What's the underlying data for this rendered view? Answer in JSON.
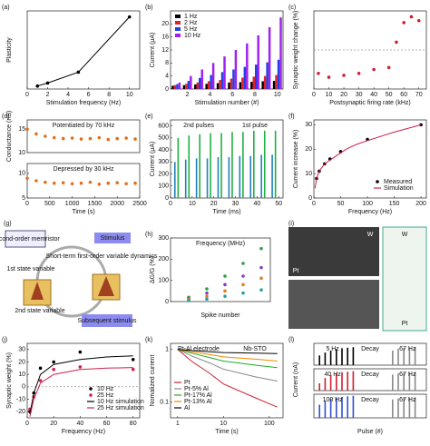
{
  "chart_data": [
    {
      "type": "line",
      "label": "(a)",
      "xlabel": "Stimulation frequency (Hz)",
      "ylabel": "Plasticity",
      "xlim": [
        0,
        11
      ],
      "xticks": [
        0,
        2,
        4,
        6,
        8,
        10
      ],
      "ylim": [
        0,
        1.3
      ],
      "series": [
        {
          "color": "#000000",
          "style": "both",
          "x": [
            1,
            2,
            5,
            10
          ],
          "values": [
            0.05,
            0.1,
            0.28,
            1.2
          ]
        }
      ]
    },
    {
      "type": "bar",
      "label": "(b)",
      "xlabel": "Stimulation number (#)",
      "ylabel": "Current (μA)",
      "categories": [
        null,
        "2",
        null,
        "4",
        null,
        "6",
        null,
        "8",
        null,
        "10"
      ],
      "ylim": [
        0,
        24
      ],
      "yticks": [
        0,
        4,
        8,
        12,
        16,
        20
      ],
      "legend": "upper left",
      "series": [
        {
          "name": "1 Hz",
          "color": "#000000",
          "values": [
            1,
            1.2,
            1.4,
            1.6,
            1.8,
            2,
            2.1,
            2.2,
            2.4,
            2.5
          ]
        },
        {
          "name": "2 Hz",
          "color": "#e0202a",
          "values": [
            1.2,
            1.6,
            2,
            2.4,
            2.8,
            3.2,
            3.5,
            3.8,
            4,
            4.3
          ]
        },
        {
          "name": "5 Hz",
          "color": "#2040e0",
          "values": [
            1.5,
            2.5,
            3.4,
            4.3,
            5.2,
            6,
            6.8,
            7.5,
            8.2,
            9
          ]
        },
        {
          "name": "10 Hz",
          "color": "#a020f0",
          "values": [
            2,
            4,
            6,
            8,
            10,
            12,
            14,
            16.5,
            19,
            22
          ]
        }
      ]
    },
    {
      "type": "scatter",
      "label": "(c)",
      "xlabel": "Postsynaptic firing rate (kHz)",
      "ylabel": "Synaptic weight change (%)",
      "xlim": [
        0,
        75
      ],
      "xticks": [
        0,
        10,
        20,
        30,
        40,
        50,
        60,
        70
      ],
      "ylim": [
        -1,
        1
      ],
      "zeroline": true,
      "series": [
        {
          "color": "#d02030",
          "x": [
            3,
            10,
            20,
            30,
            40,
            50,
            55,
            60,
            65,
            70
          ],
          "values": [
            -0.6,
            -0.7,
            -0.65,
            -0.6,
            -0.5,
            -0.45,
            0.2,
            0.7,
            0.85,
            0.75
          ]
        }
      ]
    },
    {
      "type": "scatter",
      "label": "(d)",
      "ylabel": "Conductance (nS)",
      "xlim": [
        0,
        2500
      ],
      "ylim": [
        10,
        17
      ],
      "yticks": [
        10,
        15
      ],
      "annotations": [
        "Potentiated by 70 kHz"
      ],
      "series": [
        {
          "color": "#e07020",
          "x": [
            0,
            200,
            400,
            600,
            800,
            1000,
            1200,
            1400,
            1600,
            1800,
            2000,
            2200,
            2400
          ],
          "values": [
            15,
            14,
            13.5,
            13.2,
            13,
            13.1,
            12.9,
            13,
            13.2,
            12.8,
            13,
            13.1,
            12.9
          ]
        }
      ]
    },
    {
      "type": "scatter",
      "xlabel": "Time (s)",
      "xlim": [
        0,
        2500
      ],
      "xticks": [
        0,
        500,
        1000,
        1500,
        2000,
        2500
      ],
      "ylim": [
        5,
        12
      ],
      "yticks": [
        5,
        10
      ],
      "annotations": [
        "Depressed by 30 kHz"
      ],
      "series": [
        {
          "color": "#e07020",
          "x": [
            0,
            200,
            400,
            600,
            800,
            1000,
            1200,
            1400,
            1600,
            1800,
            2000,
            2200,
            2400
          ],
          "values": [
            9,
            8.5,
            8.2,
            8,
            8.1,
            7.9,
            8,
            8.2,
            7.8,
            8,
            8.1,
            7.9,
            8
          ]
        }
      ]
    },
    {
      "type": "bar",
      "label": "(e)",
      "xlabel": "Time (ms)",
      "ylabel": "Current (μA)",
      "xlim": [
        0,
        52
      ],
      "xticks": [
        0,
        10,
        20,
        30,
        40,
        50
      ],
      "ylim": [
        0,
        650
      ],
      "yticks": [
        0,
        100,
        200,
        300,
        400,
        500,
        600
      ],
      "annotations": [
        "2nd pulses",
        "1st pulse"
      ],
      "series": [
        {
          "color": "#2080c0",
          "x": [
            2,
            7,
            12,
            17,
            22,
            27,
            32,
            37,
            42,
            47
          ],
          "values": [
            300,
            320,
            330,
            330,
            340,
            340,
            350,
            350,
            360,
            360
          ]
        },
        {
          "color": "#20b040",
          "x": [
            3.5,
            8.5,
            13.5,
            18.5,
            23.5,
            28.5,
            33.5,
            38.5,
            43.5,
            48.5
          ],
          "values": [
            500,
            520,
            530,
            540,
            540,
            550,
            550,
            560,
            560,
            560
          ]
        }
      ]
    },
    {
      "type": "line",
      "label": "(f)",
      "xlabel": "Frequency (Hz)",
      "ylabel": "Current increase (%)",
      "xlim": [
        0,
        210
      ],
      "xticks": [
        0,
        50,
        100,
        150,
        200
      ],
      "ylim": [
        0,
        32
      ],
      "yticks": [
        0,
        10,
        20,
        30
      ],
      "legend": "lower right",
      "series": [
        {
          "name": "Measured",
          "color": "#000000",
          "style": "marker",
          "x": [
            5,
            10,
            20,
            30,
            50,
            100,
            200
          ],
          "values": [
            8,
            11,
            14,
            16,
            19,
            24,
            30
          ]
        },
        {
          "name": "Simulation",
          "color": "#d0204a",
          "style": "line",
          "x": [
            2,
            5,
            10,
            20,
            40,
            60,
            80,
            100,
            150,
            200
          ],
          "values": [
            4,
            8,
            11,
            14,
            17,
            20,
            22,
            23.5,
            27,
            30
          ]
        }
      ]
    },
    {
      "type": "diagram",
      "label": "(g)",
      "texts": [
        "Second-order memristor",
        "Stimulus",
        "Short-term first-order variable dynamics",
        "1st state variable",
        "2nd state variable",
        "Subsequent stimulus"
      ]
    },
    {
      "type": "scatter",
      "label": "(h)",
      "xlabel": "Spike number",
      "ylabel": "ΔG/G (%)",
      "xlim": [
        0,
        11
      ],
      "ylim": [
        0,
        300
      ],
      "yticks": [
        0,
        100,
        200,
        300
      ],
      "annotations": [
        "Frequency (MHz)"
      ],
      "series": [
        {
          "color": "#30a040",
          "x": [
            2,
            4,
            6,
            8,
            10
          ],
          "values": [
            20,
            60,
            120,
            180,
            250
          ]
        },
        {
          "color": "#8040c0",
          "x": [
            2,
            4,
            6,
            8,
            10
          ],
          "values": [
            15,
            40,
            80,
            120,
            160
          ]
        },
        {
          "color": "#e08020",
          "x": [
            2,
            4,
            6,
            8,
            10
          ],
          "values": [
            10,
            25,
            50,
            80,
            110
          ]
        },
        {
          "color": "#20a0a0",
          "x": [
            2,
            4,
            6,
            8,
            10
          ],
          "values": [
            5,
            12,
            25,
            40,
            55
          ]
        }
      ]
    },
    {
      "type": "image",
      "label": "(i)",
      "texts": [
        "W",
        "Pt",
        "W",
        "Pt"
      ]
    },
    {
      "type": "line",
      "label": "(j)",
      "xlabel": "Frequency (Hz)",
      "ylabel": "Synaptic weight (%)",
      "xlim": [
        0,
        85
      ],
      "xticks": [
        0,
        20,
        40,
        60,
        80
      ],
      "ylim": [
        -25,
        35
      ],
      "yticks": [
        -20,
        -10,
        0,
        10,
        20,
        30
      ],
      "zeroline": true,
      "legend": "lower right",
      "series": [
        {
          "name": "10 Hz",
          "color": "#000000",
          "style": "marker",
          "x": [
            2,
            5,
            10,
            20,
            40,
            80
          ],
          "values": [
            -20,
            -5,
            15,
            20,
            28,
            22
          ]
        },
        {
          "name": "25 Hz",
          "color": "#d0204a",
          "style": "marker",
          "x": [
            2,
            5,
            10,
            20,
            40,
            80
          ],
          "values": [
            -18,
            -8,
            5,
            14,
            16,
            14
          ]
        },
        {
          "name": "10 Hz simulation",
          "color": "#000000",
          "style": "line",
          "x": [
            2,
            5,
            10,
            20,
            40,
            60,
            80
          ],
          "values": [
            -22,
            -5,
            10,
            18,
            22,
            24,
            25
          ]
        },
        {
          "name": "25 Hz simulation",
          "color": "#d0204a",
          "style": "line",
          "x": [
            2,
            5,
            10,
            20,
            40,
            60,
            80
          ],
          "values": [
            -24,
            -10,
            3,
            10,
            14,
            15,
            15.5
          ]
        }
      ]
    },
    {
      "type": "line",
      "label": "(k)",
      "xlabel": "Time (s)",
      "ylabel": "Nomalized current",
      "xlog": true,
      "ylog": true,
      "xlim": [
        0.7,
        200
      ],
      "xticks": [
        1,
        10,
        100
      ],
      "ylim": [
        0.05,
        1.3
      ],
      "yticks": [
        0.1,
        1
      ],
      "legend": "lower left",
      "annotations": [
        "Pt-Al electrode",
        "Nb-STO"
      ],
      "series": [
        {
          "name": "Pt",
          "color": "#d02030",
          "x": [
            1,
            2,
            5,
            10,
            50,
            150
          ],
          "values": [
            1,
            0.6,
            0.35,
            0.22,
            0.12,
            0.08
          ]
        },
        {
          "name": "Pt-5% Al",
          "color": "#888888",
          "x": [
            1,
            2,
            5,
            10,
            50,
            150
          ],
          "values": [
            1,
            0.75,
            0.55,
            0.42,
            0.3,
            0.25
          ]
        },
        {
          "name": "Pt-17% Al",
          "color": "#22aa22",
          "x": [
            1,
            2,
            5,
            10,
            50,
            150
          ],
          "values": [
            1,
            0.85,
            0.7,
            0.6,
            0.5,
            0.45
          ]
        },
        {
          "name": "Pt-13% Al",
          "color": "#ee8800",
          "x": [
            1,
            2,
            5,
            10,
            50,
            150
          ],
          "values": [
            1,
            0.9,
            0.8,
            0.72,
            0.65,
            0.6
          ]
        },
        {
          "name": "Al",
          "color": "#000000",
          "x": [
            1,
            2,
            5,
            10,
            50,
            150
          ],
          "values": [
            1,
            0.95,
            0.9,
            0.87,
            0.85,
            0.83
          ]
        }
      ]
    },
    {
      "type": "bar",
      "label": "(l)",
      "xlim": [
        0,
        20
      ],
      "ylim": [
        0,
        450
      ],
      "annotations": [
        "5 Hz",
        "Decay",
        "67 Hz"
      ],
      "series": [
        {
          "color": "#000000",
          "x": [
            1,
            2,
            3,
            4,
            5,
            6,
            7
          ],
          "values": [
            200,
            260,
            300,
            330,
            350,
            360,
            370
          ]
        },
        {
          "color": "#888888",
          "x": [
            14,
            15,
            16,
            17,
            18
          ],
          "values": [
            300,
            340,
            360,
            370,
            380
          ]
        }
      ]
    },
    {
      "type": "bar",
      "ylabel": "Current (nA)",
      "xlim": [
        0,
        20
      ],
      "ylim": [
        0,
        450
      ],
      "annotations": [
        "40 Hz",
        "Decay",
        "67 Hz"
      ],
      "series": [
        {
          "color": "#d02030",
          "x": [
            1,
            2,
            3,
            4,
            5,
            6,
            7
          ],
          "values": [
            150,
            260,
            320,
            360,
            380,
            390,
            400
          ]
        },
        {
          "color": "#888888",
          "x": [
            14,
            15,
            16,
            17,
            18
          ],
          "values": [
            330,
            360,
            370,
            380,
            390
          ]
        }
      ]
    },
    {
      "type": "bar",
      "xlabel": "Pulse (#)",
      "xlim": [
        0,
        20
      ],
      "ylim": [
        0,
        450
      ],
      "annotations": [
        "100 Hz",
        "Decay",
        "67 Hz"
      ],
      "series": [
        {
          "color": "#3050d0",
          "x": [
            1,
            2,
            3,
            4,
            5,
            6,
            7
          ],
          "values": [
            250,
            330,
            370,
            390,
            400,
            410,
            420
          ]
        },
        {
          "color": "#888888",
          "x": [
            14,
            15,
            16,
            17,
            18
          ],
          "values": [
            350,
            370,
            380,
            390,
            395
          ]
        }
      ]
    }
  ]
}
